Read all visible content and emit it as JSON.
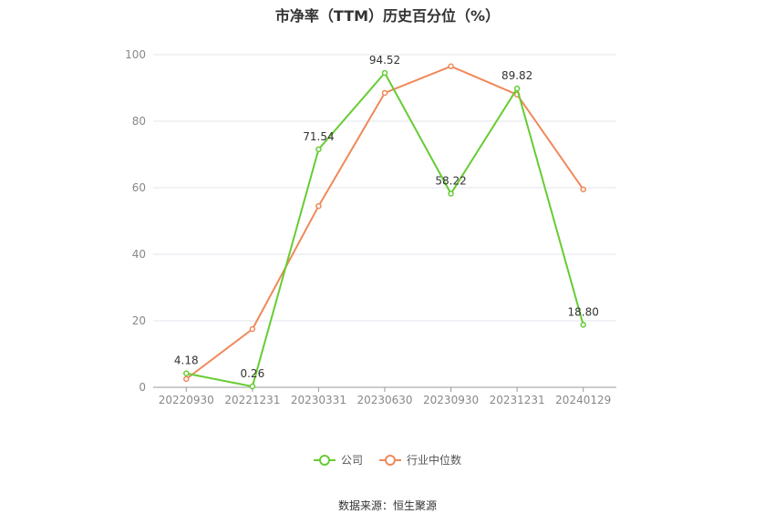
{
  "chart_data": {
    "type": "line",
    "title": "市净率（TTM）历史百分位（%）",
    "categories": [
      "20220930",
      "20221231",
      "20230331",
      "20230630",
      "20230930",
      "20231231",
      "20240129"
    ],
    "ylim": [
      0,
      100
    ],
    "yticks": [
      "0",
      "20",
      "40",
      "60",
      "80",
      "100"
    ],
    "grid": true,
    "legend_position": "bottom",
    "series": [
      {
        "name": "公司",
        "color": "#66cc33",
        "values": [
          4.18,
          0.26,
          71.54,
          94.52,
          58.22,
          89.82,
          18.8
        ],
        "labels": [
          "4.18",
          "0.26",
          "71.54",
          "94.52",
          "58.22",
          "89.82",
          "18.80"
        ]
      },
      {
        "name": "行业中位数",
        "color": "#f0895a",
        "values": [
          2.5,
          17.5,
          54.5,
          88.5,
          96.5,
          88.0,
          59.5
        ]
      }
    ],
    "source": "数据来源：恒生聚源"
  }
}
